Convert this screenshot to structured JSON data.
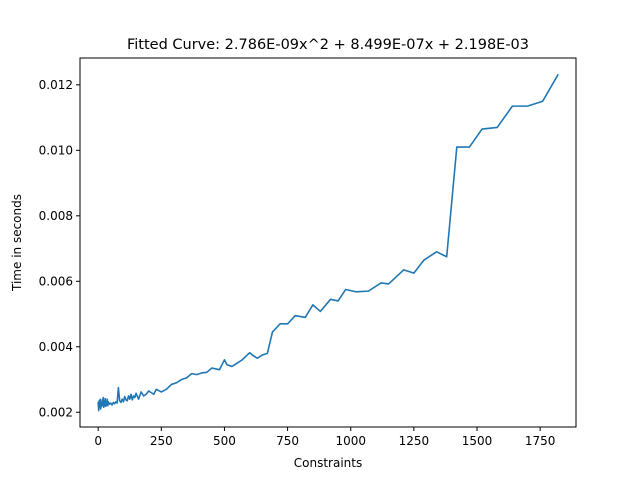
{
  "chart_data": {
    "type": "line",
    "title": "Fitted Curve: 2.786E-09x^2 + 8.499E-07x + 2.198E-03",
    "xlabel": "Constraints",
    "ylabel": "Time in seconds",
    "xlim": [
      -72,
      1892
    ],
    "ylim": [
      0.00155,
      0.01282
    ],
    "x_ticks": [
      0,
      250,
      500,
      750,
      1000,
      1250,
      1500,
      1750
    ],
    "x_tick_labels": [
      "0",
      "250",
      "500",
      "750",
      "1000",
      "1250",
      "1500",
      "1750"
    ],
    "y_ticks": [
      0.002,
      0.004,
      0.006,
      0.008,
      0.01,
      0.012
    ],
    "y_tick_labels": [
      "0.002",
      "0.004",
      "0.006",
      "0.008",
      "0.010",
      "0.012"
    ],
    "grid": false,
    "color": "#1f77b4",
    "series": [
      {
        "x": [
          0,
          2,
          4,
          6,
          8,
          10,
          12,
          14,
          16,
          18,
          20,
          22,
          24,
          26,
          28,
          30,
          32,
          34,
          36,
          38,
          40,
          45,
          50,
          55,
          60,
          65,
          70,
          75,
          80,
          85,
          90,
          95,
          100,
          105,
          110,
          115,
          120,
          125,
          130,
          135,
          140,
          145,
          150,
          160,
          170,
          180,
          190,
          200,
          210,
          220,
          230,
          250,
          270,
          290,
          310,
          330,
          350,
          370,
          390,
          410,
          430,
          450,
          480,
          500,
          510,
          530,
          550,
          570,
          600,
          610,
          630,
          650,
          670,
          690,
          720,
          750,
          780,
          820,
          850,
          880,
          920,
          950,
          980,
          1020,
          1070,
          1120,
          1150,
          1210,
          1250,
          1290,
          1340,
          1380,
          1420,
          1470,
          1520,
          1580,
          1640,
          1700,
          1760,
          1820
        ],
        "y": [
          0.0023,
          0.00205,
          0.00235,
          0.00215,
          0.0024,
          0.0021,
          0.0023,
          0.00218,
          0.00238,
          0.00222,
          0.00245,
          0.00215,
          0.00235,
          0.0022,
          0.00242,
          0.00218,
          0.0023,
          0.00222,
          0.0024,
          0.0022,
          0.00232,
          0.00225,
          0.00228,
          0.00222,
          0.0023,
          0.00226,
          0.00232,
          0.00228,
          0.00275,
          0.00235,
          0.0023,
          0.0024,
          0.00232,
          0.00248,
          0.00238,
          0.00235,
          0.0025,
          0.0024,
          0.00255,
          0.00238,
          0.0025,
          0.00245,
          0.00258,
          0.0024,
          0.00262,
          0.0025,
          0.00255,
          0.00265,
          0.0026,
          0.00255,
          0.0027,
          0.00262,
          0.0027,
          0.00285,
          0.0029,
          0.003,
          0.00305,
          0.00318,
          0.00315,
          0.0032,
          0.00322,
          0.00335,
          0.0033,
          0.0036,
          0.00345,
          0.0034,
          0.0035,
          0.0036,
          0.00382,
          0.00375,
          0.00365,
          0.00375,
          0.0038,
          0.00445,
          0.0047,
          0.0047,
          0.00495,
          0.0049,
          0.00528,
          0.00508,
          0.00545,
          0.0054,
          0.00575,
          0.00568,
          0.0057,
          0.00595,
          0.00592,
          0.00635,
          0.00625,
          0.00665,
          0.0069,
          0.00675,
          0.0101,
          0.0101,
          0.01065,
          0.0107,
          0.01135,
          0.01135,
          0.0115,
          0.0123
        ]
      }
    ]
  }
}
